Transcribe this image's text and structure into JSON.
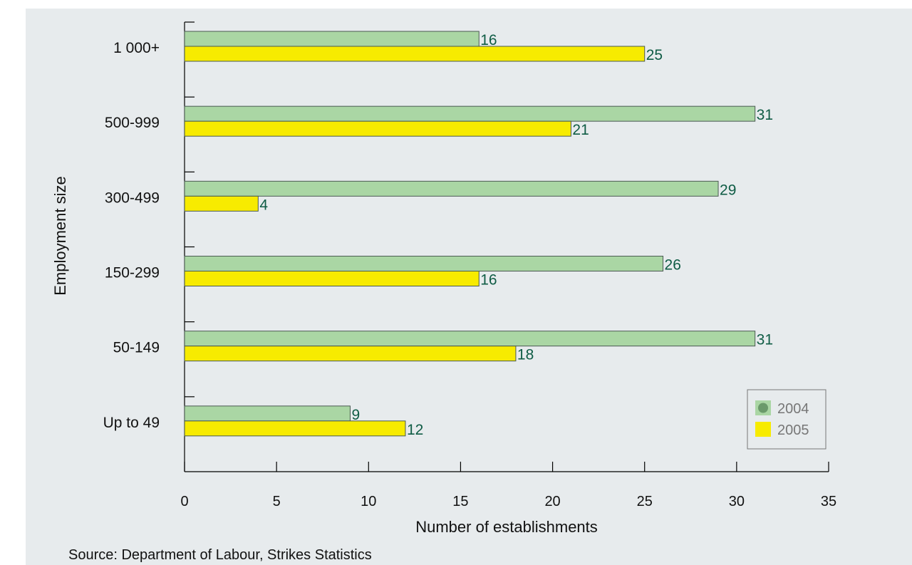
{
  "chart_data": {
    "type": "bar",
    "orientation": "horizontal",
    "categories": [
      "1 000+",
      "500-999",
      "300-499",
      "150-299",
      "50-149",
      "Up to 49"
    ],
    "series": [
      {
        "name": "2004",
        "values": [
          16,
          31,
          29,
          26,
          31,
          9
        ],
        "color": "#aad6a4"
      },
      {
        "name": "2005",
        "values": [
          25,
          21,
          4,
          16,
          18,
          12
        ],
        "color": "#f7eb00"
      }
    ],
    "xlabel": "Number of establishments",
    "ylabel": "Employment size",
    "xlim": [
      0,
      35
    ],
    "xticks": [
      0,
      5,
      10,
      15,
      20,
      25,
      30,
      35
    ],
    "grid": false,
    "legend_position": "bottom-right",
    "data_label_color": "#0f5c45",
    "legend_marker_color": "#6b9a6b"
  },
  "source": "Source: Department of Labour, Strikes Statistics"
}
